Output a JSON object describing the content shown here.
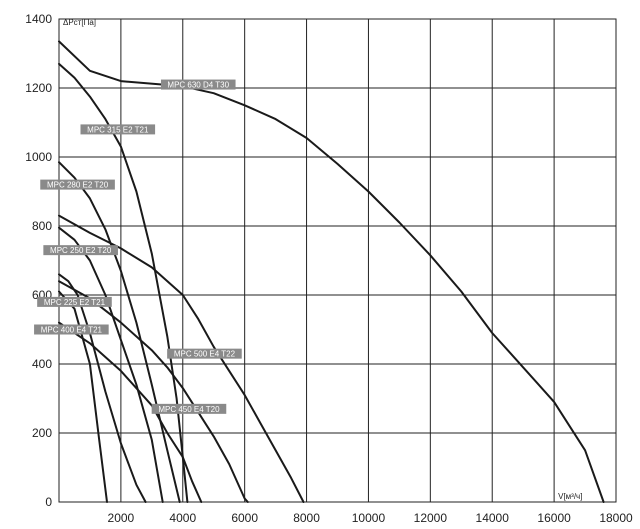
{
  "chart_data": {
    "type": "line",
    "xlabel": "V[м³/ч]",
    "ylabel": "ΔPст[Па]",
    "xlim": [
      0,
      18000
    ],
    "ylim": [
      0,
      1400
    ],
    "x_ticks": [
      "2000",
      "4000",
      "6000",
      "8000",
      "10000",
      "12000",
      "14000",
      "16000",
      "18000"
    ],
    "y_ticks": [
      "0",
      "200",
      "400",
      "600",
      "800",
      "1000",
      "1200",
      "1400"
    ],
    "grid": true,
    "colors": {
      "curve": "#1a1a1a",
      "label_bg": "#8a8a8a",
      "grid": "#222222"
    },
    "series": [
      {
        "name": "MPC 630 D4 T30",
        "label_at": [
          4500,
          1210
        ],
        "points": [
          [
            0,
            1335
          ],
          [
            1000,
            1250
          ],
          [
            2000,
            1220
          ],
          [
            4000,
            1205
          ],
          [
            5000,
            1185
          ],
          [
            6000,
            1150
          ],
          [
            7000,
            1110
          ],
          [
            8000,
            1055
          ],
          [
            9000,
            980
          ],
          [
            10000,
            900
          ],
          [
            11000,
            810
          ],
          [
            12000,
            715
          ],
          [
            13000,
            610
          ],
          [
            14000,
            490
          ],
          [
            15000,
            390
          ],
          [
            16000,
            290
          ],
          [
            17000,
            150
          ],
          [
            17600,
            0
          ]
        ]
      },
      {
        "name": "MPC 315 E2 T21",
        "label_at": [
          1900,
          1080
        ],
        "points": [
          [
            0,
            1270
          ],
          [
            500,
            1230
          ],
          [
            1000,
            1175
          ],
          [
            1500,
            1110
          ],
          [
            2000,
            1030
          ],
          [
            2500,
            900
          ],
          [
            3000,
            720
          ],
          [
            3500,
            480
          ],
          [
            3800,
            300
          ],
          [
            4000,
            130
          ],
          [
            4150,
            0
          ]
        ]
      },
      {
        "name": "MPC 280 E2 T20",
        "label_at": [
          600,
          920
        ],
        "points": [
          [
            0,
            985
          ],
          [
            500,
            940
          ],
          [
            1000,
            880
          ],
          [
            1500,
            790
          ],
          [
            2000,
            670
          ],
          [
            2500,
            520
          ],
          [
            3000,
            340
          ],
          [
            3500,
            150
          ],
          [
            3900,
            0
          ]
        ]
      },
      {
        "name": "MPC 500 E4 T22",
        "label_at": [
          4700,
          430
        ],
        "points": [
          [
            0,
            830
          ],
          [
            1000,
            780
          ],
          [
            2000,
            735
          ],
          [
            3000,
            680
          ],
          [
            4000,
            600
          ],
          [
            4500,
            530
          ],
          [
            5000,
            450
          ],
          [
            5500,
            380
          ],
          [
            6000,
            310
          ],
          [
            6500,
            230
          ],
          [
            7000,
            150
          ],
          [
            7500,
            70
          ],
          [
            7900,
            0
          ]
        ]
      },
      {
        "name": "MPC 250 E2 T20",
        "label_at": [
          700,
          730
        ],
        "points": [
          [
            0,
            795
          ],
          [
            500,
            760
          ],
          [
            1000,
            700
          ],
          [
            1500,
            600
          ],
          [
            2000,
            470
          ],
          [
            2500,
            340
          ],
          [
            3000,
            180
          ],
          [
            3350,
            0
          ]
        ]
      },
      {
        "name": "MPC 450 E4 T20",
        "label_at": [
          4200,
          270
        ],
        "points": [
          [
            0,
            640
          ],
          [
            1000,
            590
          ],
          [
            2000,
            520
          ],
          [
            3000,
            440
          ],
          [
            3500,
            390
          ],
          [
            4000,
            330
          ],
          [
            4500,
            260
          ],
          [
            5000,
            190
          ],
          [
            5500,
            110
          ],
          [
            6000,
            10
          ],
          [
            6100,
            0
          ]
        ]
      },
      {
        "name": "MPC 225 E2 T21",
        "label_at": [
          500,
          580
        ],
        "points": [
          [
            0,
            660
          ],
          [
            300,
            640
          ],
          [
            600,
            600
          ],
          [
            1000,
            490
          ],
          [
            1500,
            320
          ],
          [
            2000,
            170
          ],
          [
            2500,
            50
          ],
          [
            2800,
            0
          ]
        ]
      },
      {
        "name": "MPC 400 E4 T21",
        "label_at": [
          400,
          500
        ],
        "points": [
          [
            0,
            520
          ],
          [
            1000,
            460
          ],
          [
            2000,
            380
          ],
          [
            3000,
            280
          ],
          [
            3500,
            200
          ],
          [
            4000,
            130
          ],
          [
            4300,
            60
          ],
          [
            4600,
            0
          ]
        ]
      },
      {
        "name": "",
        "label_at": null,
        "points": [
          [
            0,
            610
          ],
          [
            500,
            560
          ],
          [
            1000,
            400
          ],
          [
            1300,
            180
          ],
          [
            1550,
            0
          ]
        ]
      }
    ]
  }
}
